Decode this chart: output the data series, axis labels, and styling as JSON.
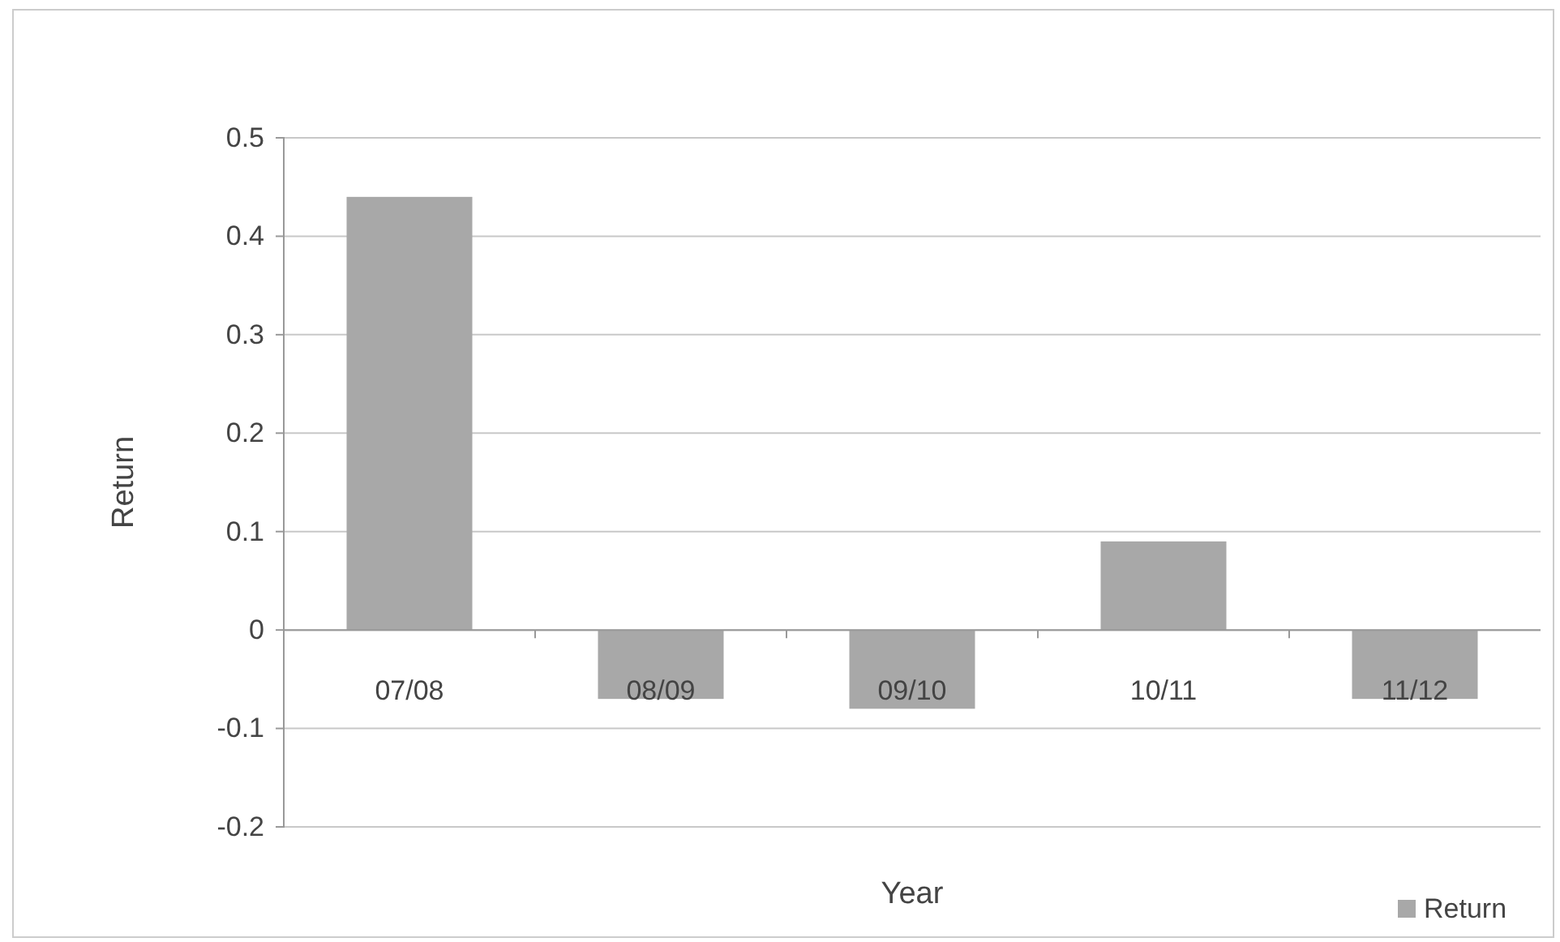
{
  "chart_data": {
    "type": "bar",
    "xlabel": "Year",
    "ylabel": "Return",
    "categories": [
      "07/08",
      "08/09",
      "09/10",
      "10/11",
      "11/12"
    ],
    "series": [
      {
        "name": "Return",
        "color": "#a8a8a8",
        "values": [
          0.44,
          -0.07,
          -0.08,
          0.09,
          -0.07
        ]
      }
    ],
    "ylim": [
      -0.2,
      0.5
    ],
    "yticks": [
      -0.2,
      -0.1,
      0,
      0.1,
      0.2,
      0.3,
      0.4,
      0.5
    ],
    "grid": "y",
    "legend": "bottom right"
  }
}
